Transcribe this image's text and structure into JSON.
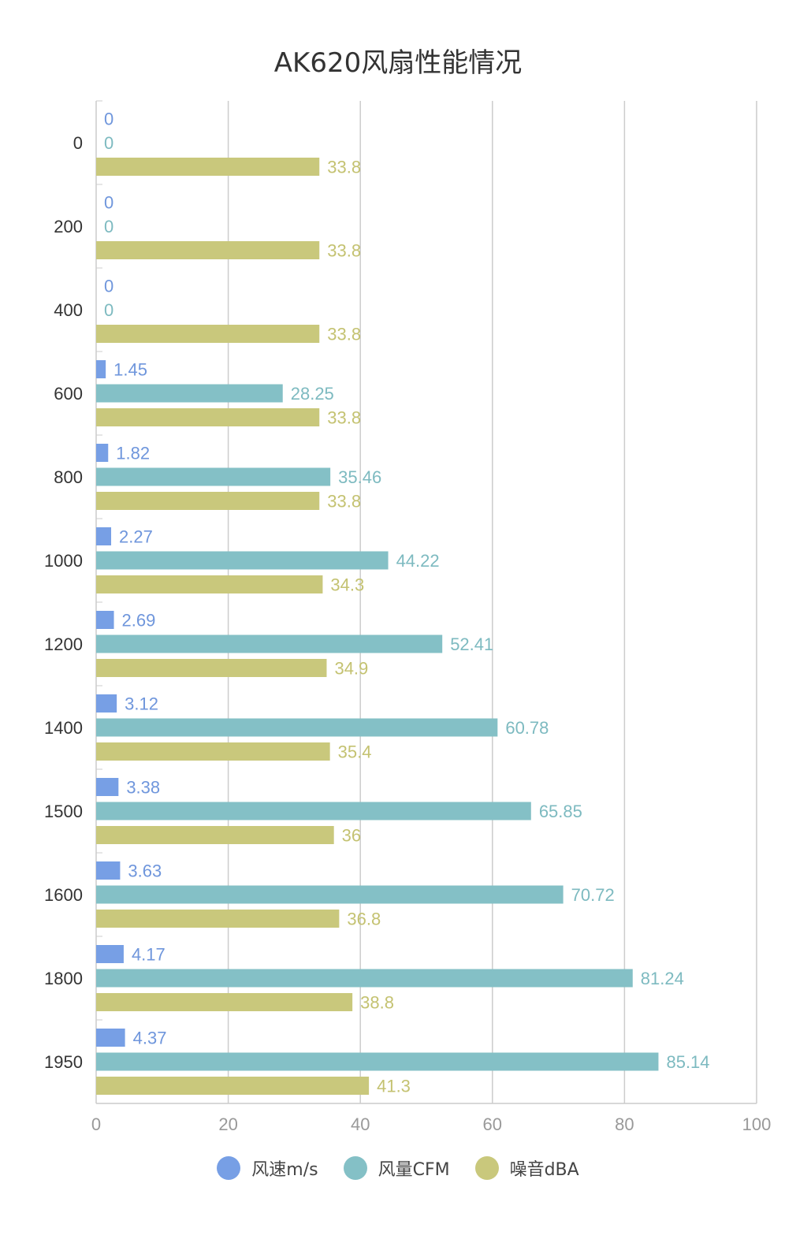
{
  "chart_data": {
    "type": "bar",
    "orientation": "horizontal",
    "title": "AK620风扇性能情况",
    "categories": [
      "0",
      "200",
      "400",
      "600",
      "800",
      "1000",
      "1200",
      "1400",
      "1500",
      "1600",
      "1800",
      "1950"
    ],
    "series": [
      {
        "name": "风速m/s",
        "color": "#779fe5",
        "values": [
          0,
          0,
          0,
          1.45,
          1.82,
          2.27,
          2.69,
          3.12,
          3.38,
          3.63,
          4.17,
          4.37
        ]
      },
      {
        "name": "风量CFM",
        "color": "#84c0c6",
        "values": [
          0,
          0,
          0,
          28.25,
          35.46,
          44.22,
          52.41,
          60.78,
          65.85,
          70.72,
          81.24,
          85.14
        ]
      },
      {
        "name": "噪音dBA",
        "color": "#c9c87c",
        "values": [
          33.8,
          33.8,
          33.8,
          33.8,
          33.8,
          34.3,
          34.9,
          35.4,
          36,
          36.8,
          38.8,
          41.3
        ]
      }
    ],
    "xlim": [
      0,
      100
    ],
    "xticks": [
      "0",
      "20",
      "40",
      "60",
      "80",
      "100"
    ],
    "grid": true,
    "legend": "bottom"
  }
}
